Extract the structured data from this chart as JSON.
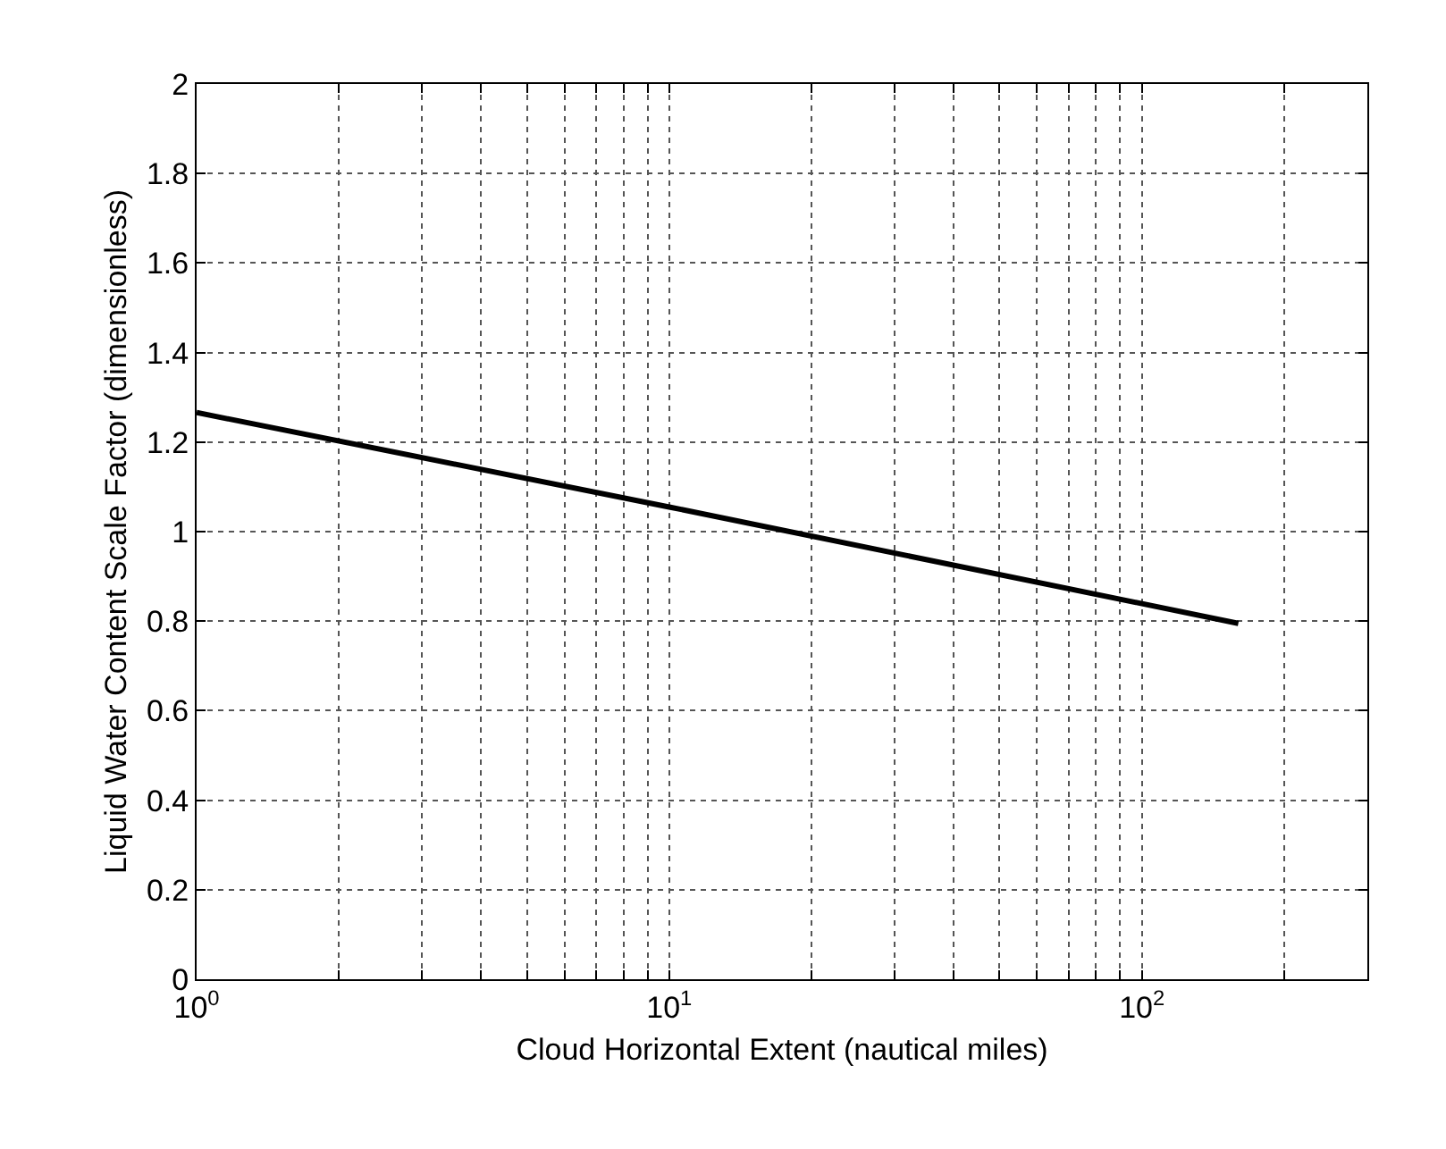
{
  "chart_data": {
    "type": "line",
    "xlabel": "Cloud Horizontal Extent (nautical miles)",
    "ylabel": "Liquid Water Content Scale Factor (dimensionless)",
    "x": [
      1,
      10,
      160
    ],
    "series": [
      {
        "color": "#000000",
        "values": [
          1.266,
          1.055,
          0.795
        ]
      }
    ],
    "log": "x",
    "xlim": [
      1,
      300
    ],
    "ylim": [
      0,
      2
    ],
    "xticks": [
      {
        "value": 1,
        "label": "10$^{0}$"
      },
      {
        "value": 2,
        "label": null
      },
      {
        "value": 3,
        "label": null
      },
      {
        "value": 4,
        "label": null
      },
      {
        "value": 5,
        "label": null
      },
      {
        "value": 6,
        "label": null
      },
      {
        "value": 7,
        "label": null
      },
      {
        "value": 8,
        "label": null
      },
      {
        "value": 9,
        "label": null
      },
      {
        "value": 10,
        "label": "10$^{1}$"
      },
      {
        "value": 20,
        "label": null
      },
      {
        "value": 30,
        "label": null
      },
      {
        "value": 40,
        "label": null
      },
      {
        "value": 50,
        "label": null
      },
      {
        "value": 60,
        "label": null
      },
      {
        "value": 70,
        "label": null
      },
      {
        "value": 80,
        "label": null
      },
      {
        "value": 90,
        "label": null
      },
      {
        "value": 100,
        "label": "10$^{2}$"
      },
      {
        "value": 200,
        "label": null
      },
      {
        "value": 300,
        "label": null
      }
    ],
    "yticks": [
      0,
      0.2,
      0.4,
      0.6,
      0.8,
      1,
      1.2,
      1.4,
      1.6,
      1.8,
      2
    ],
    "grid": true,
    "legend": false,
    "line_style": "solid",
    "marker": "none"
  }
}
